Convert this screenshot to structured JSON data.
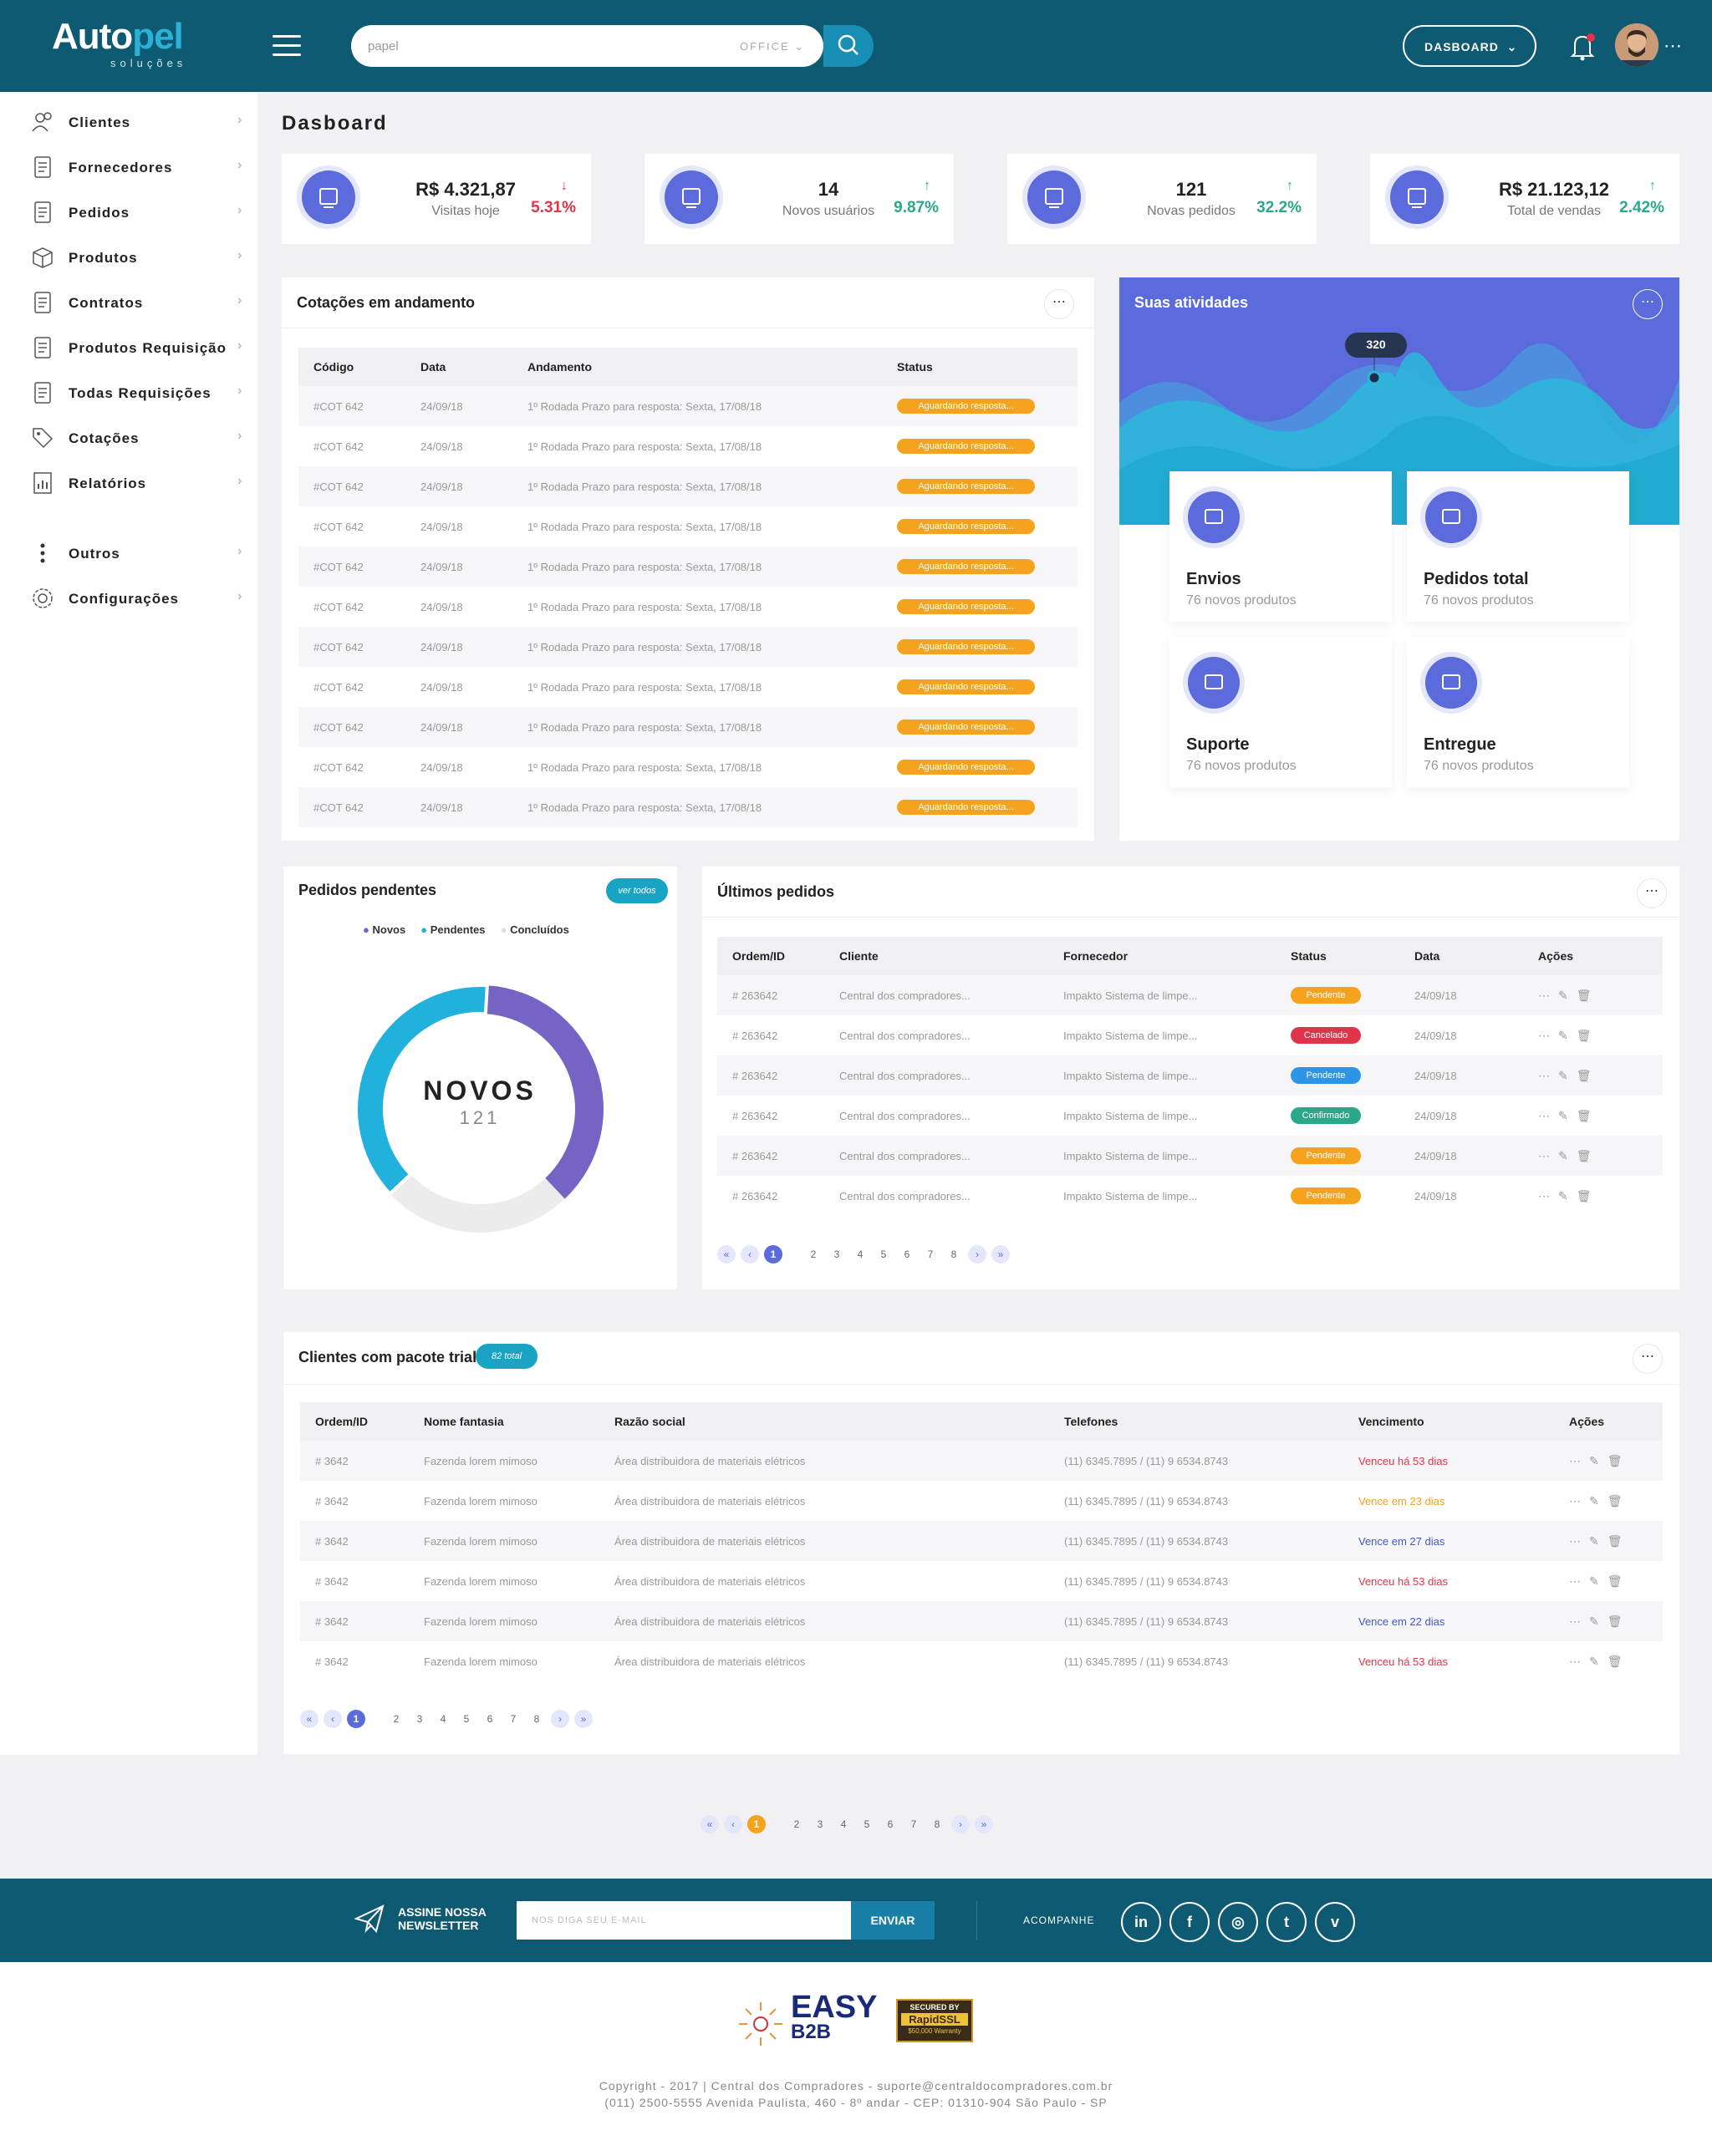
{
  "header": {
    "logo_main_a": "Auto",
    "logo_main_b": "pel",
    "logo_sub": "soluções",
    "search_placeholder": "papel",
    "search_scope": "OFFICE",
    "dash_button": "DASBOARD"
  },
  "sidebar": {
    "items": [
      {
        "label": "Clientes",
        "icon": "users-icon"
      },
      {
        "label": "Fornecedores",
        "icon": "supplier-icon"
      },
      {
        "label": "Pedidos",
        "icon": "clipboard-icon"
      },
      {
        "label": "Produtos",
        "icon": "box-icon"
      },
      {
        "label": "Contratos",
        "icon": "document-icon"
      },
      {
        "label": "Produtos Requisição",
        "icon": "document-hand-icon"
      },
      {
        "label": "Todas Requisições",
        "icon": "documents-icon"
      },
      {
        "label": "Cotações",
        "icon": "tag-icon"
      },
      {
        "label": "Relatórios",
        "icon": "report-icon"
      },
      {
        "label": "Outros",
        "icon": "vertical-dots-icon"
      },
      {
        "label": "Configurações",
        "icon": "gear-icon"
      }
    ]
  },
  "page_title": "Dasboard",
  "stats": [
    {
      "value": "R$ 4.321,87",
      "label": "Visitas hoje",
      "pct": "5.31%",
      "dir": "down",
      "color": "#e0344a"
    },
    {
      "value": "14",
      "label": "Novos usuários",
      "pct": "9.87%",
      "dir": "up",
      "color": "#2aa889"
    },
    {
      "value": "121",
      "label": "Novas pedidos",
      "pct": "32.2%",
      "dir": "up",
      "color": "#2aa889"
    },
    {
      "value": "R$ 21.123,12",
      "label": "Total de vendas",
      "pct": "2.42%",
      "dir": "up",
      "color": "#2aa889"
    }
  ],
  "cotacoes": {
    "title": "Cotações em andamento",
    "headers": [
      "Código",
      "Data",
      "Andamento",
      "Status"
    ],
    "rows": [
      [
        "#COT 642",
        "24/09/18",
        "1º Rodada Prazo para resposta: Sexta, 17/08/18",
        "Aguardando resposta..."
      ],
      [
        "#COT 642",
        "24/09/18",
        "1º Rodada Prazo para resposta: Sexta, 17/08/18",
        "Aguardando resposta..."
      ],
      [
        "#COT 642",
        "24/09/18",
        "1º Rodada Prazo para resposta: Sexta, 17/08/18",
        "Aguardando resposta..."
      ],
      [
        "#COT 642",
        "24/09/18",
        "1º Rodada Prazo para resposta: Sexta, 17/08/18",
        "Aguardando resposta..."
      ],
      [
        "#COT 642",
        "24/09/18",
        "1º Rodada Prazo para resposta: Sexta, 17/08/18",
        "Aguardando resposta..."
      ],
      [
        "#COT 642",
        "24/09/18",
        "1º Rodada Prazo para resposta: Sexta, 17/08/18",
        "Aguardando resposta..."
      ],
      [
        "#COT 642",
        "24/09/18",
        "1º Rodada Prazo para resposta: Sexta, 17/08/18",
        "Aguardando resposta..."
      ],
      [
        "#COT 642",
        "24/09/18",
        "1º Rodada Prazo para resposta: Sexta, 17/08/18",
        "Aguardando resposta..."
      ],
      [
        "#COT 642",
        "24/09/18",
        "1º Rodada Prazo para resposta: Sexta, 17/08/18",
        "Aguardando resposta..."
      ],
      [
        "#COT 642",
        "24/09/18",
        "1º Rodada Prazo para resposta: Sexta, 17/08/18",
        "Aguardando resposta..."
      ],
      [
        "#COT 642",
        "24/09/18",
        "1º Rodada Prazo para resposta: Sexta, 17/08/18",
        "Aguardando resposta..."
      ]
    ]
  },
  "atividades": {
    "title": "Suas atividades",
    "peak": "320",
    "tiles": [
      {
        "title": "Envios",
        "sub": "76 novos produtos",
        "icon": "truck-icon"
      },
      {
        "title": "Pedidos total",
        "sub": "76 novos produtos",
        "icon": "clipboard-icon"
      },
      {
        "title": "Suporte",
        "sub": "76 novos produtos",
        "icon": "paper-plane-icon"
      },
      {
        "title": "Entregue",
        "sub": "76 novos produtos",
        "icon": "package-icon"
      }
    ]
  },
  "pendentes": {
    "title": "Pedidos pendentes",
    "badge": "ver todos",
    "legend": [
      "Novos",
      "Pendentes",
      "Concluídos"
    ],
    "center_label": "NOVOS",
    "center_value": "121",
    "chart_data": {
      "type": "pie",
      "labels": [
        "Novos",
        "Pendentes",
        "Concluídos"
      ],
      "values": [
        0.37,
        0.38,
        0.25
      ],
      "colors": [
        "#7564c4",
        "#22b0dd",
        "#ececec"
      ]
    }
  },
  "ultimos": {
    "title": "Últimos pedidos",
    "headers": [
      "Ordem/ID",
      "Cliente",
      "Fornecedor",
      "Status",
      "Data",
      "Ações"
    ],
    "rows": [
      [
        "# 263642",
        "Central dos compradores...",
        "Impakto Sistema de limpe...",
        "Pendente",
        "24/09/18",
        "#f5a21c"
      ],
      [
        "# 263642",
        "Central dos compradores...",
        "Impakto Sistema de limpe...",
        "Cancelado",
        "24/09/18",
        "#e0344a"
      ],
      [
        "# 263642",
        "Central dos compradores...",
        "Impakto Sistema de limpe...",
        "Pendente",
        "24/09/18",
        "#2e95e6"
      ],
      [
        "# 263642",
        "Central dos compradores...",
        "Impakto Sistema de limpe...",
        "Confirmado",
        "24/09/18",
        "#2aa889"
      ],
      [
        "# 263642",
        "Central dos compradores...",
        "Impakto Sistema de limpe...",
        "Pendente",
        "24/09/18",
        "#f5a21c"
      ],
      [
        "# 263642",
        "Central dos compradores...",
        "Impakto Sistema de limpe...",
        "Pendente",
        "24/09/18",
        "#f5a21c"
      ]
    ],
    "pages": [
      "«",
      "‹",
      "1",
      "2",
      "3",
      "4",
      "5",
      "6",
      "7",
      "8",
      "›",
      "»"
    ]
  },
  "trial": {
    "title": "Clientes com pacote trial",
    "badge": "82 total",
    "headers": [
      "Ordem/ID",
      "Nome fantasia",
      "Razão social",
      "Telefones",
      "Vencimento",
      "Ações"
    ],
    "rows": [
      [
        "# 3642",
        "Fazenda lorem mimoso",
        "Área distribuidora de materiais elétricos",
        "(11) 6345.7895  /  (11) 9 6534.8743",
        "Venceu há 53 dias",
        "#e0344a"
      ],
      [
        "# 3642",
        "Fazenda lorem mimoso",
        "Área distribuidora de materiais elétricos",
        "(11) 6345.7895  /  (11) 9 6534.8743",
        "Vence em 23 dias",
        "#f5a21c"
      ],
      [
        "# 3642",
        "Fazenda lorem mimoso",
        "Área distribuidora de materiais elétricos",
        "(11) 6345.7895  /  (11) 9 6534.8743",
        "Vence em 27 dias",
        "#4357c4"
      ],
      [
        "# 3642",
        "Fazenda lorem mimoso",
        "Área distribuidora de materiais elétricos",
        "(11) 6345.7895  /  (11) 9 6534.8743",
        "Venceu há 53 dias",
        "#e0344a"
      ],
      [
        "# 3642",
        "Fazenda lorem mimoso",
        "Área distribuidora de materiais elétricos",
        "(11) 6345.7895  /  (11) 9 6534.8743",
        "Vence em 22 dias",
        "#4357c4"
      ],
      [
        "# 3642",
        "Fazenda lorem mimoso",
        "Área distribuidora de materiais elétricos",
        "(11) 6345.7895  /  (11) 9 6534.8743",
        "Venceu há 53 dias",
        "#e0344a"
      ]
    ],
    "pages": [
      "«",
      "‹",
      "1",
      "2",
      "3",
      "4",
      "5",
      "6",
      "7",
      "8",
      "›",
      "»"
    ]
  },
  "bottom_pages": [
    "«",
    "‹",
    "1",
    "2",
    "3",
    "4",
    "5",
    "6",
    "7",
    "8",
    "›",
    "»"
  ],
  "footer": {
    "newsletter_1": "ASSINE NOSSA",
    "newsletter_2": "NEWSLETTER",
    "email_placeholder": "NOS DIGA SEU E-MAIL",
    "send": "ENVIAR",
    "follow": "ACOMPANHE",
    "social": [
      "in",
      "f",
      "◎",
      "t",
      "v"
    ],
    "easy_1": "EASY",
    "easy_2": "B2B",
    "ssl_1": "SECURED BY",
    "ssl_2": "RapidSSL",
    "ssl_3": "$50,000 Warranty",
    "copy_1": "Copyright - 2017 | Central dos Compradores - suporte@centraldocompradores.com.br",
    "copy_2": "(011) 2500-5555 Avenida Paulista, 460 - 8º andar - CEP: 01310-904 São Paulo - SP"
  }
}
